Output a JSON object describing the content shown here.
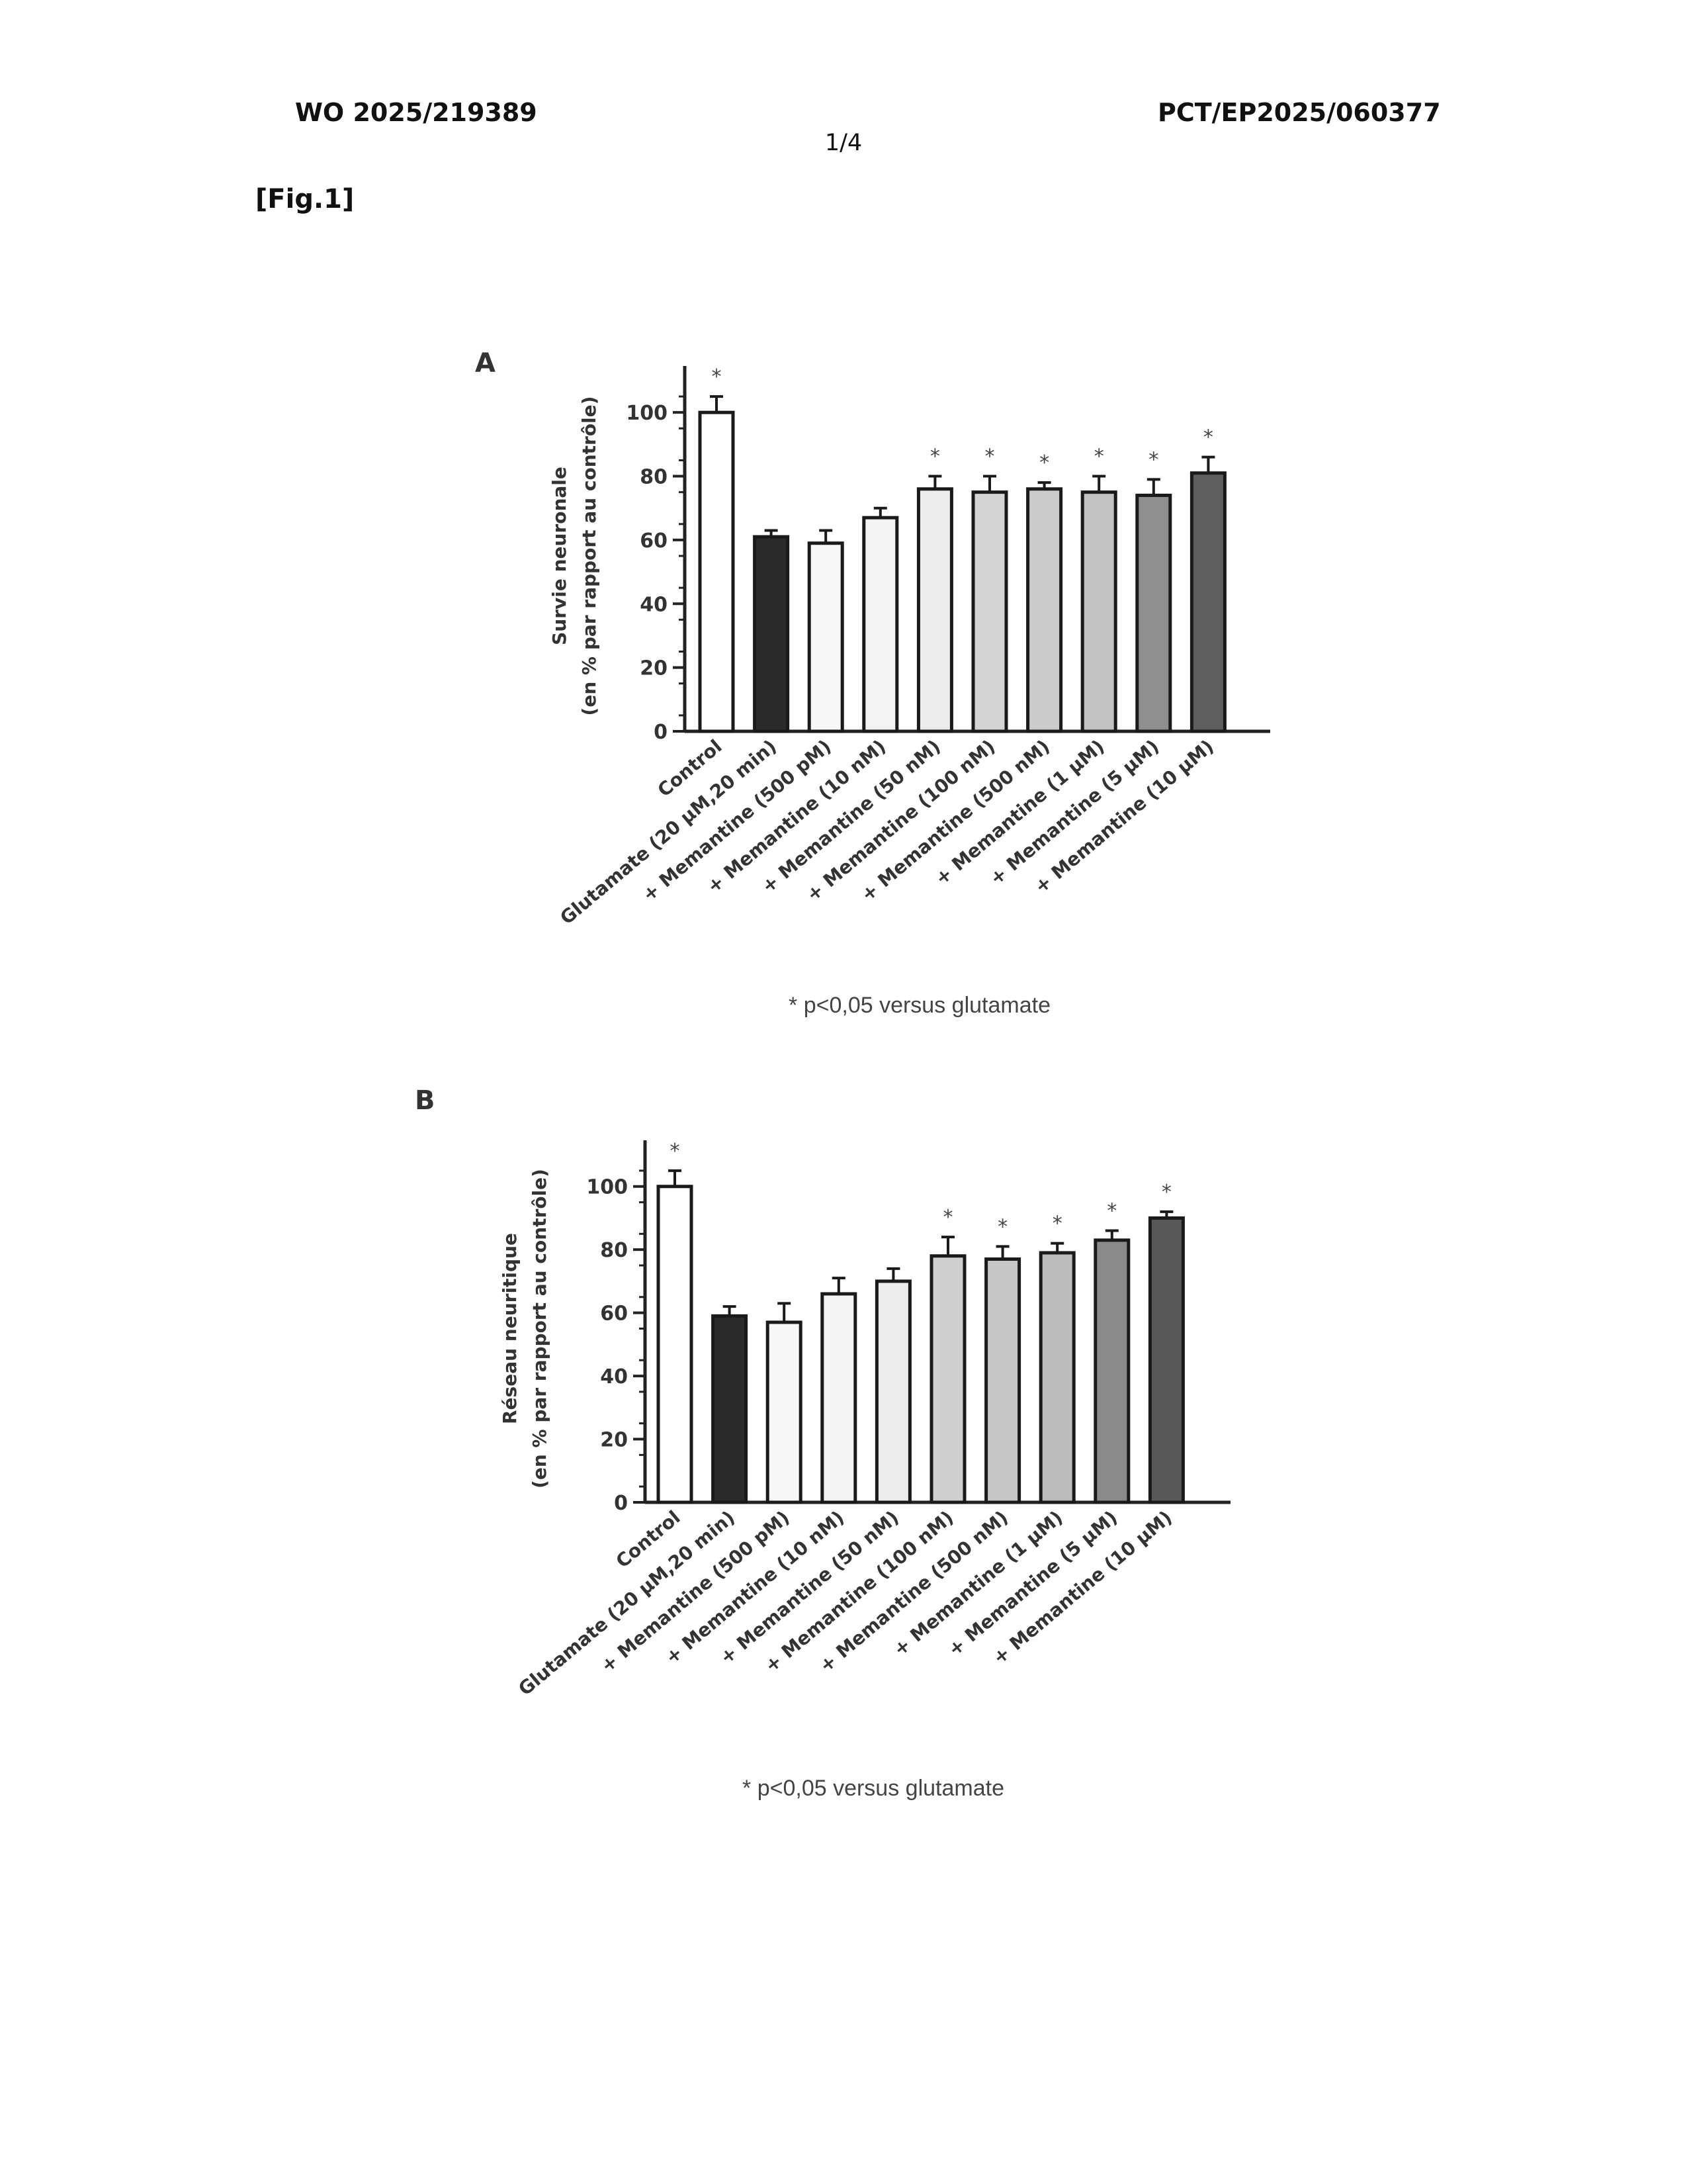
{
  "header": {
    "left": "WO 2025/219389",
    "right": "PCT/EP2025/060377",
    "page": "1/4"
  },
  "figure_label": "[Fig.1]",
  "chart_data": [
    {
      "panel": "A",
      "type": "bar",
      "ylabel_line1": "Survie neuronale",
      "ylabel_line2": "(en % par rapport au contrôle)",
      "ylim": [
        0,
        110
      ],
      "yticks": [
        "0",
        "20",
        "40",
        "60",
        "80",
        "100"
      ],
      "categories": [
        "Control",
        "Glutamate (20 µM,20 min)",
        "+ Memantine (500 pM)",
        "+ Memantine (10 nM)",
        "+ Memantine (50 nM)",
        "+ Memantine (100 nM)",
        "+ Memantine (500 nM)",
        "+ Memantine (1 µM)",
        "+ Memantine (5 µM)",
        "+ Memantine (10 µM)"
      ],
      "values": [
        100,
        61,
        59,
        67,
        76,
        75,
        76,
        75,
        74,
        81
      ],
      "errors": [
        5,
        2,
        4,
        3,
        4,
        5,
        2,
        5,
        5,
        5
      ],
      "significant": [
        true,
        false,
        false,
        false,
        true,
        true,
        true,
        true,
        true,
        true
      ],
      "star_symbol": "*",
      "fills": [
        "#ffffff",
        "#2b2b2b",
        "#f7f7f7",
        "#f3f3f3",
        "#ececec",
        "#d4d4d4",
        "#cbcbcb",
        "#c2c2c2",
        "#8f8f8f",
        "#5e5e5e"
      ],
      "note": "* p<0,05 versus glutamate",
      "grid": false
    },
    {
      "panel": "B",
      "type": "bar",
      "ylabel_line1": "Réseau neuritique",
      "ylabel_line2": "(en % par rapport au contrôle)",
      "ylim": [
        0,
        110
      ],
      "yticks": [
        "0",
        "20",
        "40",
        "60",
        "80",
        "100"
      ],
      "categories": [
        "Control",
        "Glutamate (20 µM,20 min)",
        "+ Memantine (500 pM)",
        "+ Memantine (10 nM)",
        "+ Memantine (50 nM)",
        "+ Memantine (100 nM)",
        "+ Memantine (500 nM)",
        "+ Memantine (1 µM)",
        "+ Memantine (5 µM)",
        "+ Memantine (10 µM)"
      ],
      "values": [
        100,
        59,
        57,
        66,
        70,
        78,
        77,
        79,
        83,
        90
      ],
      "errors": [
        5,
        3,
        6,
        5,
        4,
        6,
        4,
        3,
        3,
        2
      ],
      "significant": [
        true,
        false,
        false,
        false,
        false,
        true,
        true,
        true,
        true,
        true
      ],
      "star_symbol": "*",
      "fills": [
        "#ffffff",
        "#2b2b2b",
        "#f7f7f7",
        "#f3f3f3",
        "#ececec",
        "#cfcfcf",
        "#c6c6c6",
        "#bcbcbc",
        "#8a8a8a",
        "#585858"
      ],
      "note": "* p<0,05 versus glutamate",
      "grid": false
    }
  ]
}
